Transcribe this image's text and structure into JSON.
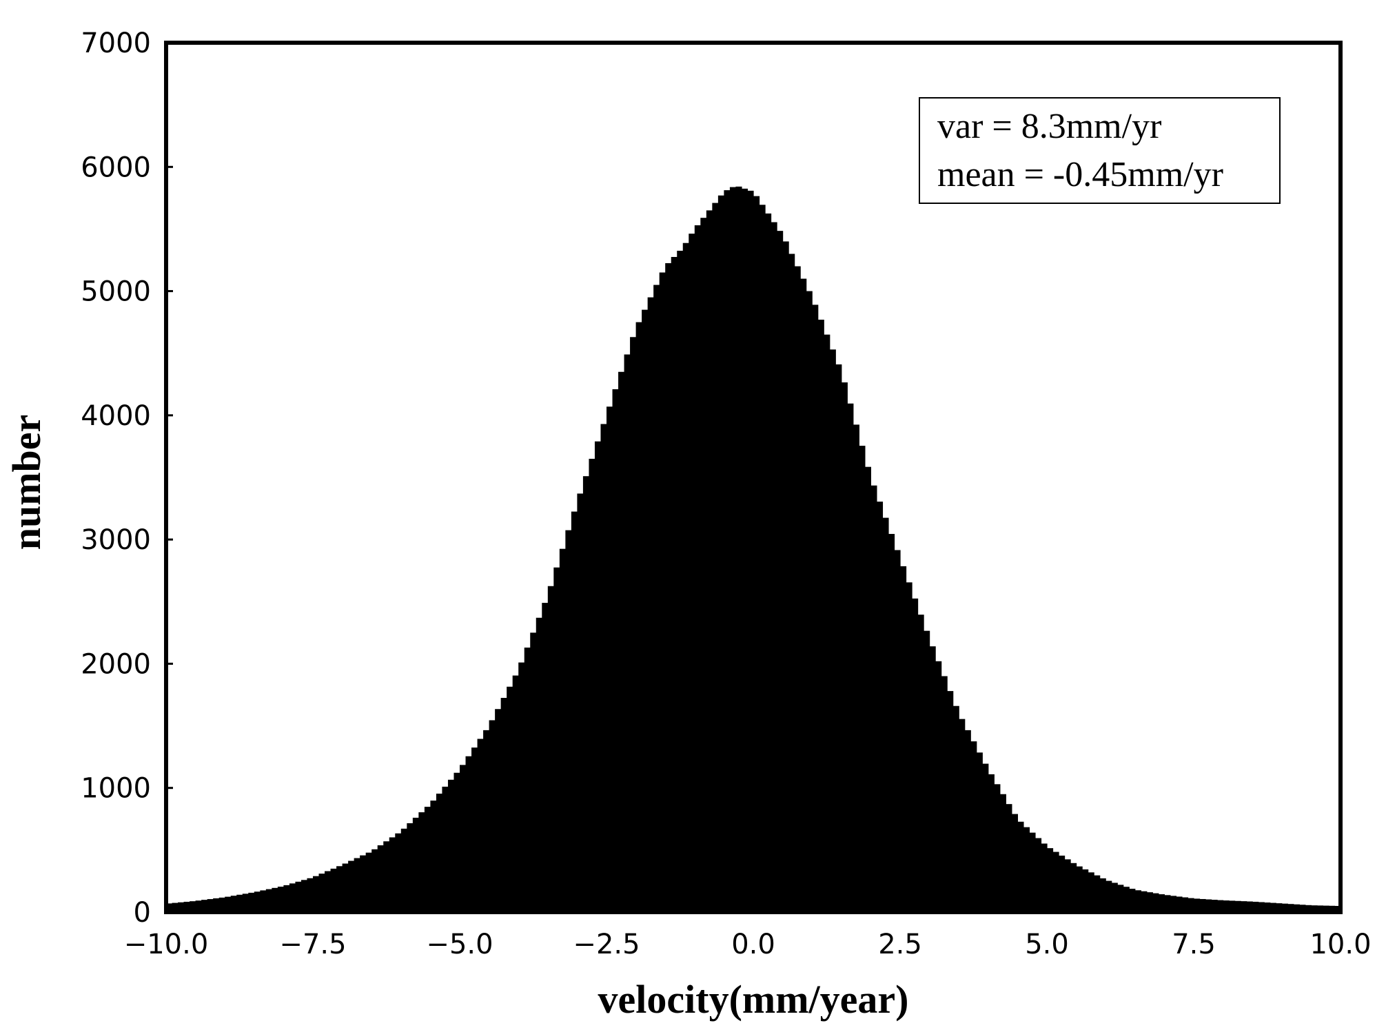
{
  "chart_data": {
    "type": "histogram",
    "title": "",
    "xlabel": "velocity(mm/year)",
    "ylabel": "number",
    "xlim": [
      -10.0,
      10.0
    ],
    "ylim": [
      0,
      7000
    ],
    "xticks": [
      "−10.0",
      "−7.5",
      "−5.0",
      "−2.5",
      "0.0",
      "2.5",
      "5.0",
      "7.5",
      "10.0"
    ],
    "xtick_values": [
      -10.0,
      -7.5,
      -5.0,
      -2.5,
      0.0,
      2.5,
      5.0,
      7.5,
      10.0
    ],
    "yticks": [
      "0",
      "1000",
      "2000",
      "3000",
      "4000",
      "5000",
      "6000",
      "7000"
    ],
    "ytick_values": [
      0,
      1000,
      2000,
      3000,
      4000,
      5000,
      6000,
      7000
    ],
    "grid": false,
    "bar_color": "#000000",
    "bin_width": 0.1,
    "x": [
      -9.95,
      -9.5,
      -9.0,
      -8.5,
      -8.0,
      -7.5,
      -7.0,
      -6.5,
      -6.0,
      -5.5,
      -5.0,
      -4.5,
      -4.0,
      -3.5,
      -3.0,
      -2.5,
      -2.0,
      -1.5,
      -1.2,
      -1.0,
      -0.5,
      -0.3,
      0.0,
      0.5,
      1.0,
      1.5,
      2.0,
      2.5,
      3.0,
      3.5,
      4.0,
      4.5,
      5.0,
      5.5,
      6.0,
      6.5,
      7.0,
      7.5,
      8.0,
      8.5,
      9.0,
      9.5,
      9.95
    ],
    "y": [
      70,
      90,
      120,
      160,
      210,
      280,
      380,
      490,
      650,
      870,
      1150,
      1500,
      1950,
      2550,
      3300,
      4000,
      4700,
      5200,
      5350,
      5500,
      5800,
      5850,
      5800,
      5450,
      4950,
      4350,
      3500,
      2850,
      2200,
      1600,
      1150,
      750,
      530,
      380,
      260,
      180,
      140,
      110,
      95,
      85,
      70,
      55,
      50
    ],
    "annotations": [
      "var = 8.3mm/yr",
      "mean = -0.45mm/yr"
    ]
  }
}
